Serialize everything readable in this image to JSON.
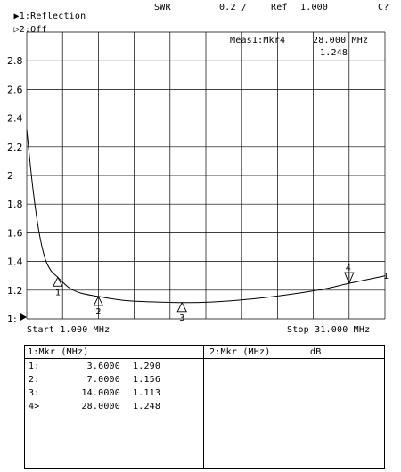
{
  "header": {
    "channel1_label": "1:Reflection",
    "channel2_label": "2:Off",
    "format": "SWR",
    "scale": "0.2 /",
    "ref_label": "Ref",
    "ref_value": "1.000",
    "status_code": "C?"
  },
  "marker_readout": {
    "label": "Meas1:Mkr4",
    "freq": "28.000 MHz",
    "value": "1.248"
  },
  "axis": {
    "start_label": "Start 1.000 MHz",
    "stop_label": "Stop 31.000 MHz",
    "y_ticks": [
      "2.8",
      "2.6",
      "2.4",
      "2.2",
      "2",
      "1.8",
      "1.6",
      "1.4",
      "1.2",
      "1:"
    ]
  },
  "markers": [
    {
      "id": "1",
      "freq_mhz": 3.6,
      "swr": 1.29
    },
    {
      "id": "2",
      "freq_mhz": 7.0,
      "swr": 1.156
    },
    {
      "id": "3",
      "freq_mhz": 14.0,
      "swr": 1.113
    },
    {
      "id": "4",
      "freq_mhz": 28.0,
      "swr": 1.248
    }
  ],
  "trace_end_label": "1",
  "table1": {
    "header": "1:Mkr (MHz)",
    "rows": [
      {
        "idx": "1:",
        "freq": "3.6000",
        "val": "1.290"
      },
      {
        "idx": "2:",
        "freq": "7.0000",
        "val": "1.156"
      },
      {
        "idx": "3:",
        "freq": "14.0000",
        "val": "1.113"
      },
      {
        "idx": "4>",
        "freq": "28.0000",
        "val": "1.248"
      }
    ]
  },
  "table2": {
    "header": "2:Mkr (MHz)",
    "unit": "dB"
  },
  "chart_data": {
    "type": "line",
    "x_range_mhz": [
      1,
      31
    ],
    "ylim": [
      1.0,
      3.0
    ],
    "grid": true,
    "series": [
      {
        "x": [
          1.0,
          1.5,
          2.0,
          2.5,
          3.0,
          3.6,
          4.5,
          5.5,
          7.0,
          9.0,
          11.0,
          14.0,
          17.0,
          20.0,
          23.0,
          26.0,
          28.0,
          31.0
        ],
        "values": [
          2.32,
          1.92,
          1.62,
          1.43,
          1.34,
          1.29,
          1.22,
          1.18,
          1.156,
          1.13,
          1.12,
          1.113,
          1.12,
          1.14,
          1.17,
          1.21,
          1.248,
          1.3
        ]
      }
    ]
  }
}
